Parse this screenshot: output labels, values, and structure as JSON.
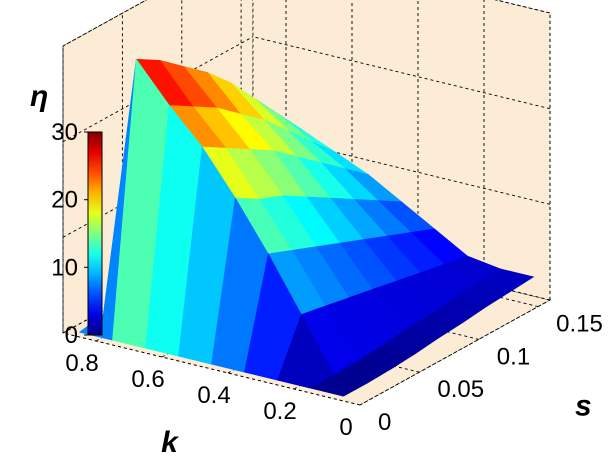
{
  "chart_data": {
    "type": "surface",
    "title": "",
    "xlabel": "k",
    "ylabel": "s",
    "zlabel": "η",
    "xlim": [
      0,
      0.9
    ],
    "ylim": [
      0,
      0.16
    ],
    "zlim": [
      0,
      30
    ],
    "x_ticks": [
      "0",
      "0.2",
      "0.4",
      "0.6",
      "0.8"
    ],
    "y_ticks": [
      "0",
      "0.05",
      "0.1",
      "0.15"
    ],
    "z_ticks": [
      "0",
      "10",
      "20",
      "30"
    ],
    "colormap": "jet",
    "colorbar_range": [
      0,
      30
    ],
    "grid": true,
    "pane_color": "#fcebd5",
    "k_values": [
      0.05,
      0.15,
      0.25,
      0.35,
      0.45,
      0.55,
      0.65,
      0.75,
      0.85
    ],
    "s_values": [
      0,
      0.02,
      0.04,
      0.06,
      0.08,
      0.1,
      0.12,
      0.14,
      0.16
    ],
    "eta_values": [
      [
        0.5,
        0.5,
        0.6,
        0.8,
        1.1,
        1.3,
        1.6,
        1.8,
        2.0
      ],
      [
        0.5,
        0.5,
        0.6,
        0.8,
        1.1,
        1.3,
        1.6,
        1.8,
        2.0
      ],
      [
        0.5,
        6.0,
        5.5,
        5.0,
        4.5,
        4.0,
        3.5,
        3.0,
        2.5
      ],
      [
        0.5,
        11.5,
        10.5,
        9.5,
        8.5,
        7.5,
        6.5,
        5.5,
        4.5
      ],
      [
        0.5,
        16.5,
        15.0,
        14.0,
        12.5,
        11.0,
        9.5,
        8.0,
        6.5
      ],
      [
        0.5,
        21.0,
        19.5,
        18.0,
        16.5,
        14.5,
        12.5,
        10.5,
        8.5
      ],
      [
        0.5,
        24.5,
        23.0,
        21.5,
        19.5,
        17.5,
        15.0,
        12.5,
        10.0
      ],
      [
        0.5,
        28.5,
        27.0,
        25.0,
        23.0,
        20.5,
        17.5,
        14.5,
        11.5
      ],
      [
        0.5,
        1.0,
        1.0,
        1.0,
        1.0,
        1.0,
        1.0,
        1.0,
        1.0
      ]
    ]
  }
}
